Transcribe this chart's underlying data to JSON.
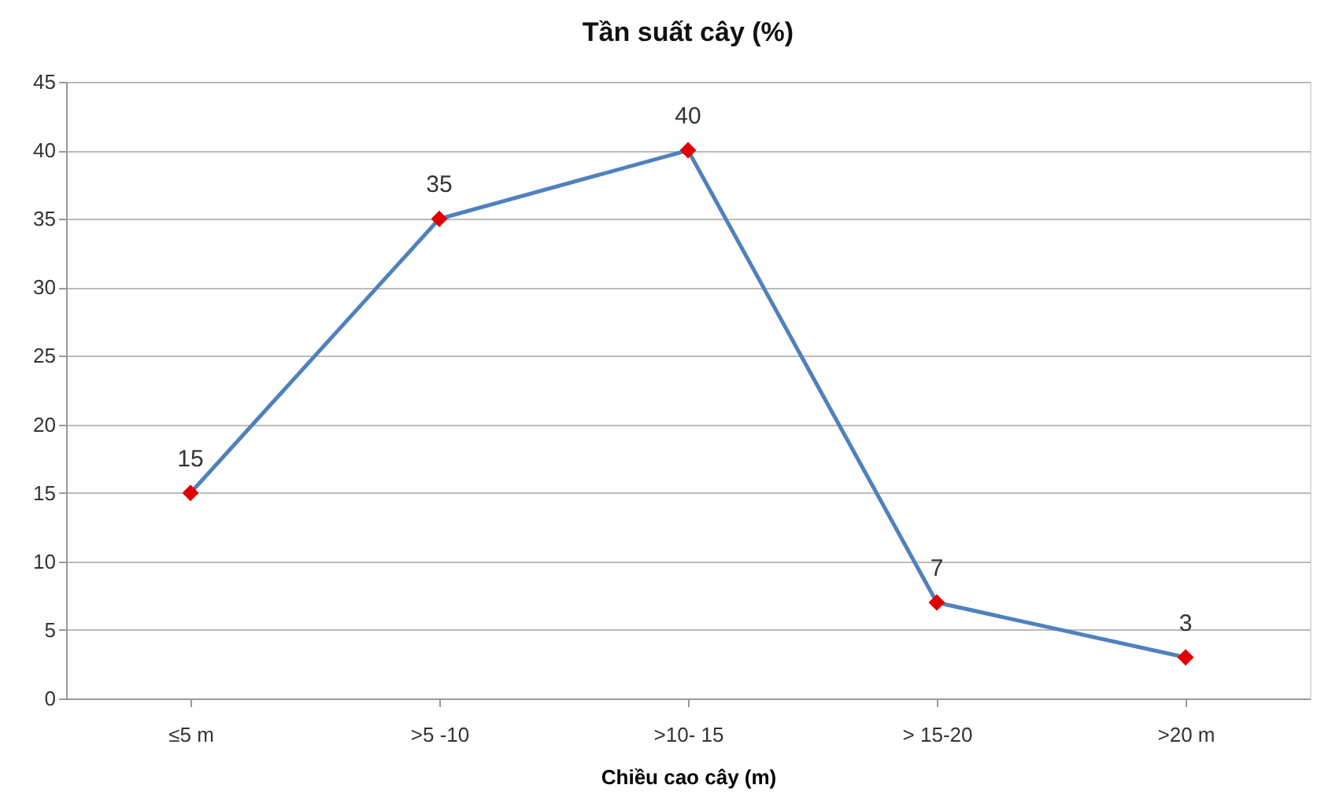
{
  "chart_data": {
    "type": "line",
    "title": "Tần suất cây (%)",
    "xlabel": "Chiều cao cây (m)",
    "categories": [
      "≤5 m",
      ">5  -10",
      ">10- 15",
      "> 15-20",
      ">20 m"
    ],
    "series": [
      {
        "color": "#4f81bd",
        "colors": [
          "#e00000",
          "#e00000",
          "#e00000",
          "#e00000",
          "#e00000"
        ],
        "values": [
          15,
          35,
          40,
          7,
          3
        ]
      }
    ],
    "ylim": [
      0,
      45
    ],
    "yticks": [
      0,
      5,
      10,
      15,
      20,
      25,
      30,
      35,
      40,
      45
    ],
    "grid": "y",
    "marker": "diamond",
    "line_style": "solid",
    "data_labels": true
  }
}
